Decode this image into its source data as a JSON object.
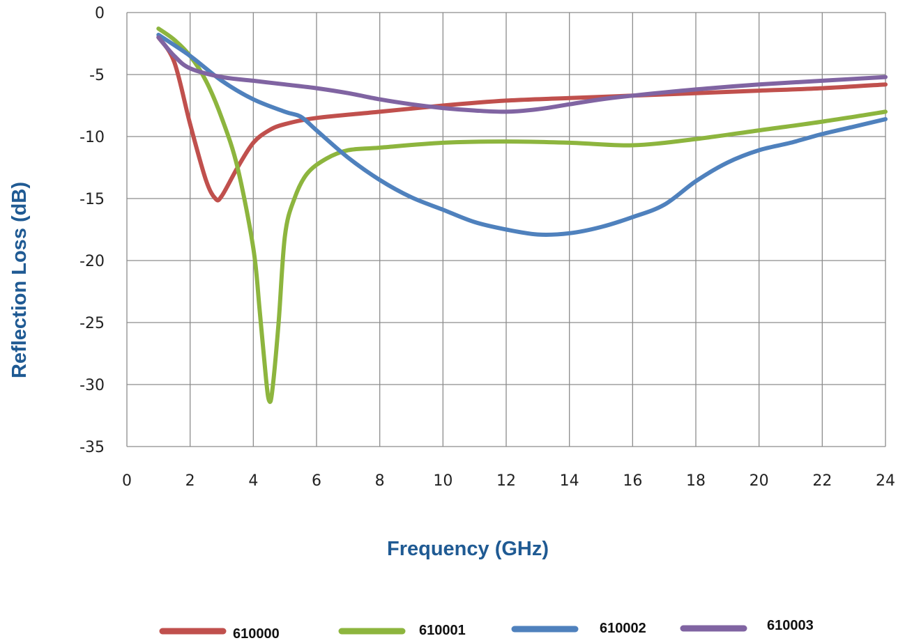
{
  "chart_data": {
    "type": "line",
    "xlabel": "Frequency (GHz)",
    "ylabel": "Reflection Loss (dB)",
    "xlim": [
      0,
      24
    ],
    "ylim": [
      -35,
      0
    ],
    "x_ticks": [
      0,
      2,
      4,
      6,
      8,
      10,
      12,
      14,
      16,
      18,
      20,
      22,
      24
    ],
    "y_ticks": [
      0,
      -5,
      -10,
      -15,
      -20,
      -25,
      -30,
      -35
    ],
    "grid": true,
    "legend_position": "bottom",
    "series": [
      {
        "name": "610000",
        "color": "#c0504d",
        "x": [
          1,
          1.5,
          2,
          2.5,
          2.8,
          3,
          3.5,
          4,
          4.5,
          5,
          6,
          8,
          10,
          12,
          14,
          16,
          18,
          20,
          22,
          24
        ],
        "y": [
          -2,
          -4,
          -9,
          -13.5,
          -15,
          -14.8,
          -12.5,
          -10.5,
          -9.5,
          -9,
          -8.5,
          -8,
          -7.5,
          -7.1,
          -6.9,
          -6.7,
          -6.5,
          -6.3,
          -6.1,
          -5.8
        ]
      },
      {
        "name": "610001",
        "color": "#8db53e",
        "x": [
          1,
          1.5,
          2,
          2.5,
          3,
          3.5,
          4,
          4.2,
          4.4,
          4.5,
          4.6,
          4.8,
          5,
          5.3,
          5.7,
          6.3,
          7,
          8,
          10,
          12,
          14,
          16,
          18,
          20,
          22,
          24
        ],
        "y": [
          -1.3,
          -2.2,
          -3.5,
          -5.5,
          -8.5,
          -12.5,
          -19,
          -24,
          -29.5,
          -31.3,
          -30.5,
          -25,
          -18,
          -15,
          -13,
          -11.8,
          -11.1,
          -10.9,
          -10.5,
          -10.4,
          -10.5,
          -10.7,
          -10.2,
          -9.5,
          -8.8,
          -8
        ]
      },
      {
        "name": "610002",
        "color": "#4f81bd",
        "x": [
          1,
          2,
          3,
          4,
          5,
          5.5,
          6,
          7,
          8,
          9,
          10,
          11,
          12,
          13,
          14,
          15,
          16,
          17,
          18,
          19,
          20,
          21,
          22,
          23,
          24
        ],
        "y": [
          -1.8,
          -3.5,
          -5.5,
          -7,
          -8,
          -8.4,
          -9.5,
          -11.7,
          -13.5,
          -14.9,
          -15.9,
          -16.9,
          -17.5,
          -17.9,
          -17.8,
          -17.3,
          -16.5,
          -15.5,
          -13.6,
          -12.1,
          -11.1,
          -10.5,
          -9.8,
          -9.2,
          -8.6
        ]
      },
      {
        "name": "610003",
        "color": "#8064a2",
        "x": [
          1,
          1.5,
          2,
          3,
          4,
          5,
          6,
          7,
          8,
          9,
          10,
          11,
          12,
          13,
          14,
          15,
          16,
          18,
          20,
          22,
          24
        ],
        "y": [
          -2,
          -3.5,
          -4.5,
          -5.2,
          -5.5,
          -5.8,
          -6.1,
          -6.5,
          -7,
          -7.4,
          -7.7,
          -7.9,
          -8,
          -7.8,
          -7.4,
          -7,
          -6.7,
          -6.2,
          -5.8,
          -5.5,
          -5.2
        ]
      }
    ]
  }
}
